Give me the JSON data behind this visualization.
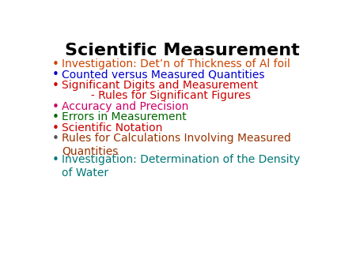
{
  "title": "Scientific Measurement",
  "title_color": "#000000",
  "title_fontsize": 16,
  "background_color": "#ffffff",
  "bullet_items": [
    {
      "text": "Investigation: Det’n of Thickness of Al foil",
      "color": "#cc4400",
      "bullet_color": "#cc4400",
      "indent": 0,
      "has_bullet": true,
      "lines": 1
    },
    {
      "text": "Counted versus Measured Quantities",
      "color": "#0000cc",
      "bullet_color": "#0000cc",
      "indent": 0,
      "has_bullet": true,
      "lines": 1
    },
    {
      "text": "Significant Digits and Measurement",
      "color": "#cc0000",
      "bullet_color": "#cc0000",
      "indent": 0,
      "has_bullet": true,
      "lines": 1
    },
    {
      "text": "     - Rules for Significant Figures",
      "color": "#cc0000",
      "bullet_color": "#cc0000",
      "indent": 1,
      "has_bullet": false,
      "lines": 1
    },
    {
      "text": "Accuracy and Precision",
      "color": "#cc0066",
      "bullet_color": "#cc0066",
      "indent": 0,
      "has_bullet": true,
      "lines": 1
    },
    {
      "text": "Errors in Measurement",
      "color": "#006600",
      "bullet_color": "#006600",
      "indent": 0,
      "has_bullet": true,
      "lines": 1
    },
    {
      "text": "Scientific Notation",
      "color": "#cc0000",
      "bullet_color": "#cc0000",
      "indent": 0,
      "has_bullet": true,
      "lines": 1
    },
    {
      "text": "Rules for Calculations Involving Measured\nQuantities",
      "color": "#993300",
      "bullet_color": "#555555",
      "indent": 0,
      "has_bullet": true,
      "lines": 2
    },
    {
      "text": "Investigation: Determination of the Density\nof Water",
      "color": "#007777",
      "bullet_color": "#007777",
      "indent": 0,
      "has_bullet": true,
      "lines": 2
    }
  ],
  "fontsize": 10,
  "figwidth": 4.5,
  "figheight": 3.38,
  "dpi": 100
}
